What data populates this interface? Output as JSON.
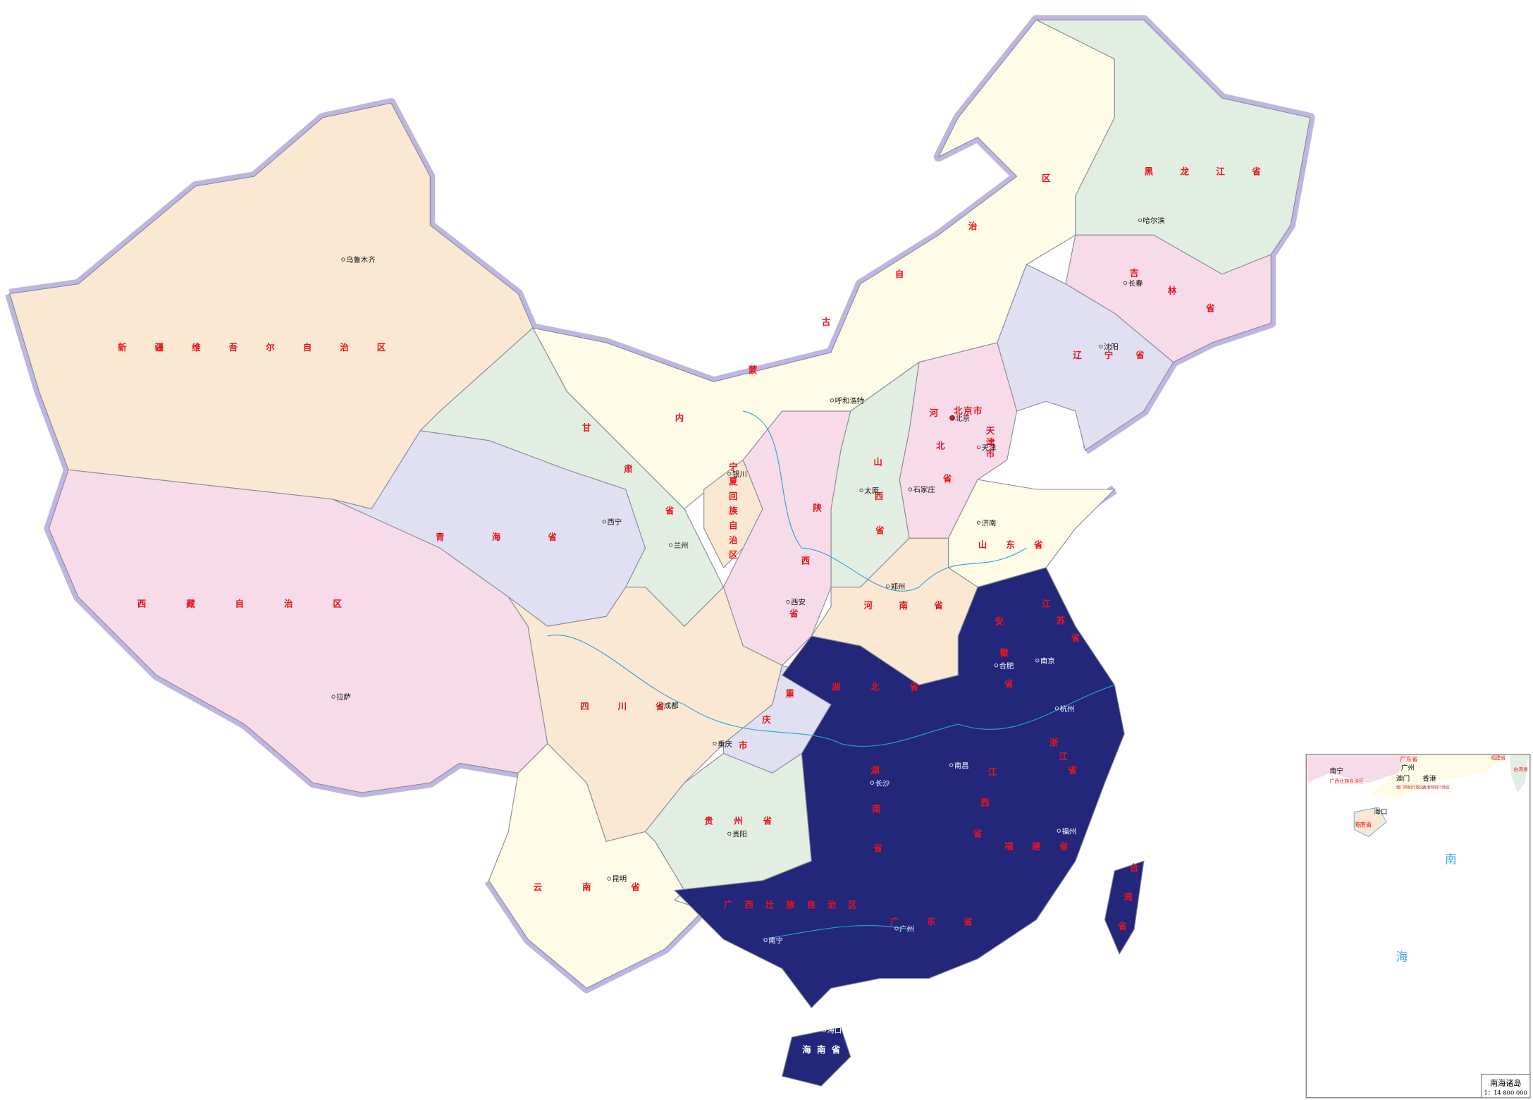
{
  "map": {
    "colors": {
      "xinjiang": "#fbe8d2",
      "tibet": "#f7dbe8",
      "qinghai": "#e0e0f2",
      "gansu": "#e2eee2",
      "inner_mongolia": "#fefce6",
      "heilongjiang": "#e2eee2",
      "jilin": "#f7dbe8",
      "liaoning": "#e0e0f2",
      "hebei": "#f7dbe8",
      "shanxi": "#e2eee2",
      "shandong": "#fefce6",
      "henan": "#fbe8d2",
      "shaanxi": "#f7dbe8",
      "ningxia": "#fbe8d2",
      "sichuan": "#fbe8d2",
      "chongqing": "#e0e0f2",
      "guizhou": "#e2eee2",
      "yunnan": "#fefce6",
      "highlight": "#22277a",
      "border_shadow": "#bcb6e0",
      "label": "#e8141e",
      "river": "#2aa0e0"
    },
    "province_labels": [
      "新疆维吾尔自治区",
      "西藏自治区",
      "青海省",
      "甘肃省",
      "内蒙古自治区",
      "黑龙江省",
      "吉林省",
      "辽宁省",
      "北京市",
      "河北省",
      "天津市",
      "山西省",
      "山东省",
      "河南省",
      "陕西省",
      "宁夏回族自治区",
      "四川省",
      "重庆市",
      "贵州省",
      "云南省",
      "湖北省",
      "湖南省",
      "江西省",
      "安徽省",
      "江苏省",
      "浙江省",
      "福建省",
      "广东省",
      "广西壮族自治区",
      "海南省",
      "台湾省"
    ],
    "cities": [
      "乌鲁木齐",
      "拉萨",
      "西宁",
      "兰州",
      "银川",
      "呼和浩特",
      "太原",
      "石家庄",
      "北京",
      "天津",
      "济南",
      "郑州",
      "西安",
      "成都",
      "重庆",
      "贵阳",
      "昆明",
      "哈尔滨",
      "长春",
      "沈阳",
      "合肥",
      "南京",
      "杭州",
      "南昌",
      "长沙",
      "福州",
      "广州",
      "南宁",
      "海口"
    ]
  },
  "inset": {
    "title": "南海诸岛",
    "scale": "1：14 800 000",
    "labels": [
      "南宁",
      "广西壮族自治区",
      "广东省",
      "广州",
      "澳门",
      "香港",
      "澳门特别行政区",
      "香港特别行政区",
      "福建省",
      "台湾省",
      "海口",
      "海南省"
    ],
    "sea_chars": [
      "南",
      "海"
    ]
  }
}
